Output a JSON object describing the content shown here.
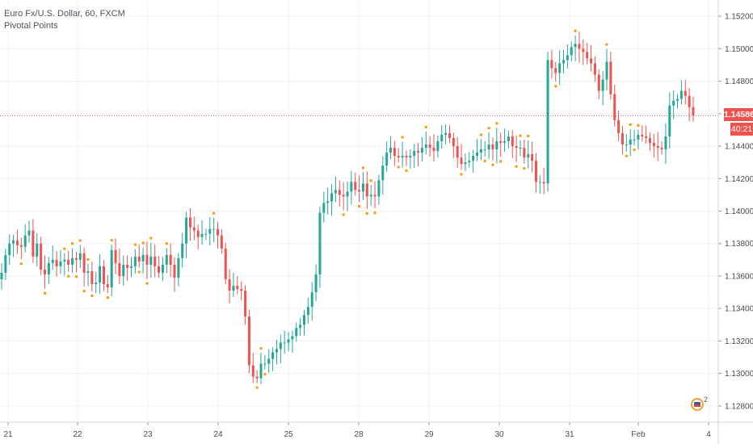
{
  "legend": {
    "symbol": "Euro Fx/U.S. Dollar, 60, FXCM",
    "indicator": "Pivotal Points"
  },
  "price_tag": {
    "last_price": "1.14586",
    "countdown": "40:21"
  },
  "events_badge": {
    "count": "2"
  },
  "colors": {
    "up": "#26a69a",
    "down": "#ef5350",
    "pivot": "#ff9800",
    "price_line": "#ef5350",
    "grid": "#eef0f3",
    "axis_text": "#4a4a4a"
  },
  "chart_data": {
    "type": "candlestick",
    "title": "Euro Fx/U.S. Dollar, 60, FXCM",
    "indicator": "Pivotal Points",
    "ylim": [
      1.127,
      1.153
    ],
    "y_ticks": [
      1.128,
      1.13,
      1.132,
      1.134,
      1.136,
      1.138,
      1.14,
      1.142,
      1.144,
      1.146,
      1.148,
      1.15,
      1.152
    ],
    "y_tick_labels": [
      "1.12800",
      "1.13000",
      "1.13200",
      "1.13400",
      "1.13600",
      "1.13800",
      "1.14000",
      "1.14200",
      "1.14400",
      "1.14600",
      "1.14800",
      "1.15000",
      "1.15200"
    ],
    "x_tick_labels": [
      "21",
      "22",
      "23",
      "24",
      "25",
      "28",
      "29",
      "30",
      "31",
      "Feb",
      "4"
    ],
    "grid": true,
    "last_price": 1.14586,
    "series": [
      {
        "name": "close",
        "values": [
          1.1362,
          1.1373,
          1.138,
          1.1382,
          1.1379,
          1.1378,
          1.1385,
          1.1388,
          1.1372,
          1.138,
          1.1364,
          1.1361,
          1.1368,
          1.137,
          1.1366,
          1.1369,
          1.137,
          1.1367,
          1.1371,
          1.137,
          1.1374,
          1.1362,
          1.1363,
          1.1355,
          1.1356,
          1.1366,
          1.1355,
          1.1353,
          1.1376,
          1.1368,
          1.136,
          1.1367,
          1.1365,
          1.1366,
          1.1372,
          1.1369,
          1.1373,
          1.1367,
          1.1372,
          1.1366,
          1.1362,
          1.1367,
          1.1373,
          1.1367,
          1.1359,
          1.1371,
          1.138,
          1.1396,
          1.139,
          1.1388,
          1.1384,
          1.1386,
          1.1386,
          1.1389,
          1.1389,
          1.1385,
          1.1377,
          1.1358,
          1.1351,
          1.1354,
          1.1352,
          1.1351,
          1.1335,
          1.1305,
          1.1298,
          1.1297,
          1.1306,
          1.1306,
          1.1309,
          1.1313,
          1.1315,
          1.1319,
          1.1319,
          1.1321,
          1.1323,
          1.1328,
          1.133,
          1.1336,
          1.1341,
          1.135,
          1.1361,
          1.1399,
          1.1405,
          1.1406,
          1.1411,
          1.1413,
          1.141,
          1.1409,
          1.1412,
          1.1418,
          1.1413,
          1.1412,
          1.1417,
          1.1409,
          1.141,
          1.1409,
          1.1419,
          1.1428,
          1.1436,
          1.1439,
          1.1434,
          1.1433,
          1.1434,
          1.1433,
          1.1434,
          1.1437,
          1.1436,
          1.1439,
          1.1441,
          1.1439,
          1.1437,
          1.1443,
          1.1447,
          1.1448,
          1.1445,
          1.144,
          1.1433,
          1.1429,
          1.143,
          1.1431,
          1.1434,
          1.1436,
          1.1438,
          1.1438,
          1.1441,
          1.1438,
          1.1443,
          1.1442,
          1.1443,
          1.1446,
          1.144,
          1.1439,
          1.1439,
          1.1433,
          1.1435,
          1.1431,
          1.1418,
          1.1418,
          1.1417,
          1.1493,
          1.1488,
          1.1485,
          1.1491,
          1.1493,
          1.1496,
          1.1501,
          1.1503,
          1.15,
          1.1498,
          1.1494,
          1.1491,
          1.1484,
          1.1474,
          1.1481,
          1.1492,
          1.1472,
          1.1456,
          1.1448,
          1.1441,
          1.1441,
          1.1444,
          1.1444,
          1.1447,
          1.1446,
          1.1445,
          1.1442,
          1.144,
          1.1439,
          1.1438,
          1.1446,
          1.1465,
          1.1468,
          1.1469,
          1.1474,
          1.1471,
          1.1464,
          1.1459
        ]
      }
    ]
  }
}
